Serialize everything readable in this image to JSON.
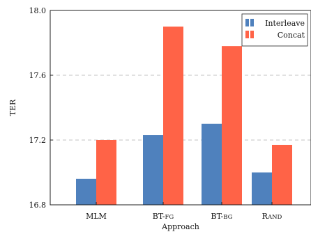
{
  "chart_data": {
    "type": "bar",
    "title": "",
    "xlabel": "Approach",
    "ylabel": "TER",
    "ylim": [
      16.8,
      18.0
    ],
    "yticks": [
      16.8,
      17.2,
      17.6,
      18.0
    ],
    "ytick_labels": [
      "16.8",
      "17.2",
      "17.6",
      "18.0"
    ],
    "grid": "horizontal dashed",
    "legend_position": "top-right",
    "categories": [
      {
        "main": "MLM",
        "cap": "",
        "small": ""
      },
      {
        "main": "BT-",
        "cap": "",
        "small": "FG"
      },
      {
        "main": "BT-",
        "cap": "",
        "small": "BG"
      },
      {
        "main": "",
        "cap": "R",
        "small": "AND"
      }
    ],
    "series": [
      {
        "name": "Interleave",
        "color": "#4f81bd",
        "values": [
          16.96,
          17.23,
          17.3,
          17.0
        ]
      },
      {
        "name": "Concat",
        "color": "#ff6347",
        "values": [
          17.2,
          17.9,
          17.78,
          17.17
        ]
      }
    ]
  }
}
